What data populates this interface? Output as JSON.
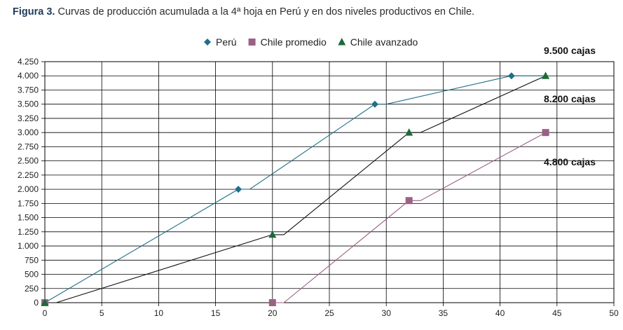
{
  "figure_label": "Figura 3.",
  "figure_caption": "Curvas de producción acumulada a la 4ª hoja en Perú y en dos niveles productivos en Chile.",
  "chart_data": {
    "type": "line",
    "title": "",
    "xlabel": "",
    "ylabel": "",
    "xlim": [
      0,
      50
    ],
    "ylim": [
      0,
      4250
    ],
    "x_ticks": [
      0,
      5,
      10,
      15,
      20,
      25,
      30,
      35,
      40,
      45,
      50
    ],
    "x_tick_labels": [
      "0",
      "5",
      "10",
      "15",
      "20",
      "25",
      "30",
      "35",
      "40",
      "45",
      "50"
    ],
    "y_ticks": [
      0,
      250,
      500,
      750,
      1000,
      1250,
      1500,
      1750,
      2000,
      2250,
      2500,
      2750,
      3000,
      3250,
      3500,
      3750,
      4000,
      4250
    ],
    "y_tick_labels": [
      "0",
      "250",
      "500",
      "750",
      "1.000",
      "1.250",
      "1.500",
      "1.750",
      "2.000",
      "2.250",
      "2.500",
      "2.750",
      "3.000",
      "3.250",
      "3.500",
      "3.750",
      "4.000",
      "4.250"
    ],
    "grid": true,
    "legend_position": "top-center",
    "series": [
      {
        "name": "Perú",
        "color": "#1f6f8b",
        "marker": "diamond",
        "line": [
          [
            0,
            0
          ],
          [
            17,
            2000
          ],
          [
            18,
            2000
          ],
          [
            29,
            3500
          ],
          [
            30,
            3500
          ],
          [
            41,
            4000
          ],
          [
            44,
            4000
          ]
        ],
        "markers": [
          [
            0,
            0
          ],
          [
            17,
            2000
          ],
          [
            29,
            3500
          ],
          [
            41,
            4000
          ]
        ]
      },
      {
        "name": "Chile promedio",
        "color": "#9b6085",
        "marker": "square",
        "line": [
          [
            20,
            0
          ],
          [
            21,
            0
          ],
          [
            32,
            1800
          ],
          [
            33,
            1800
          ],
          [
            44,
            3000
          ]
        ],
        "markers": [
          [
            0,
            0
          ],
          [
            20,
            0
          ],
          [
            32,
            1800
          ],
          [
            44,
            3000
          ]
        ]
      },
      {
        "name": "Chile avanzado",
        "color": "#1b6b3a",
        "line_color": "#111111",
        "marker": "triangle",
        "line": [
          [
            1,
            0
          ],
          [
            20,
            1200
          ],
          [
            21,
            1200
          ],
          [
            32,
            3000
          ],
          [
            33,
            3000
          ],
          [
            44,
            4000
          ]
        ],
        "markers": [
          [
            0,
            0
          ],
          [
            20,
            1200
          ],
          [
            32,
            3000
          ],
          [
            44,
            4000
          ]
        ]
      }
    ],
    "annotations": [
      {
        "text": "9.500 cajas",
        "position": "top-right"
      },
      {
        "text": "8.200 cajas",
        "position": "upper-right"
      },
      {
        "text": "4.800 cajas",
        "position": "middle-right"
      }
    ]
  }
}
